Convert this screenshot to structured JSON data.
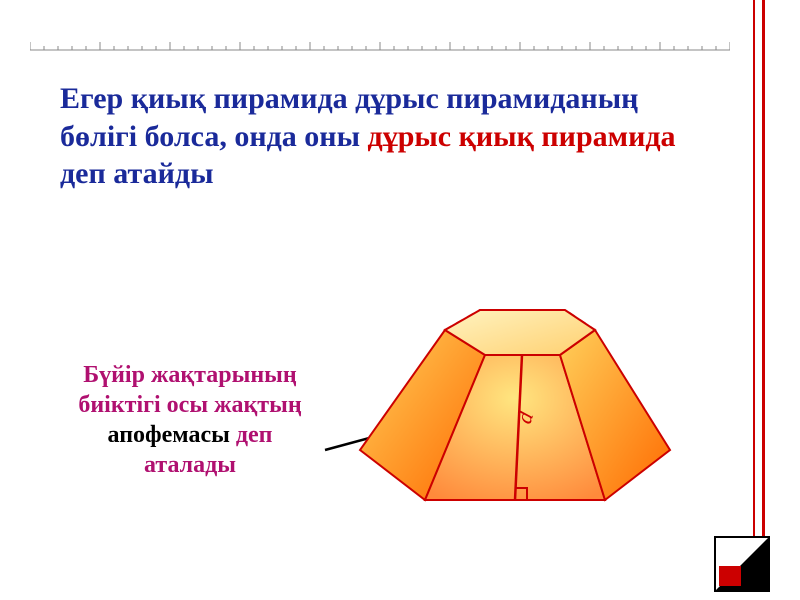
{
  "colors": {
    "blue": "#1a2a9a",
    "red": "#cc0000",
    "magenta": "#b01070",
    "black": "#000000",
    "tick": "#888888",
    "pyramid_fill_light": "#ffe680",
    "pyramid_fill_dark": "#ff8a3b",
    "pyramid_face_front": "#ffb347",
    "pyramid_face_side": "#ff7a1a",
    "pyramid_shadow": "#e84060"
  },
  "main_text": {
    "part1": "Егер қиық пирамида дұрыс пирамиданың бөлігі болса, онда оны ",
    "highlight": "дұрыс қиық пирамида",
    "part2": " деп атайды",
    "part1_color": "#1a2a9a",
    "highlight_color": "#cc0000",
    "part2_color": "#1a2a9a",
    "fontsize": 30
  },
  "side_text": {
    "line1": "Бүйір жақтарының биіктігі осы жақтың ",
    "line1_color": "#b01070",
    "apothem": "апофемасы",
    "apothem_color": "#000000",
    "line2": " деп аталады",
    "line2_color": "#b01070",
    "fontsize": 24
  },
  "label_d": {
    "text": "d",
    "color": "#cc0000",
    "fontsize": 22,
    "font_style": "italic"
  },
  "tick_border": {
    "count": 50,
    "height_major": 8,
    "height_minor": 4,
    "color": "#888888"
  }
}
